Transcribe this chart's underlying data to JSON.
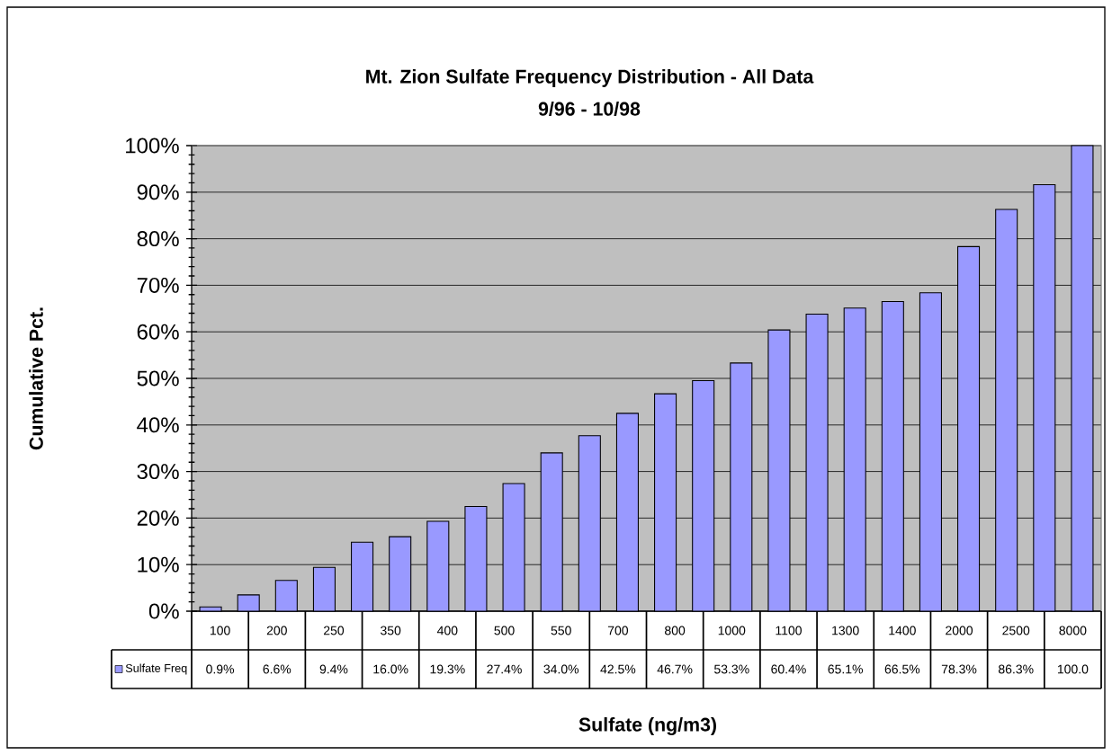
{
  "chart_data": {
    "type": "bar",
    "title": "Mt. Zion Sulfate Frequency Distribution - All Data",
    "subtitle": "9/96 - 10/98",
    "xlabel": "Sulfate (ng/m3)",
    "ylabel": "Cumulative Pct.",
    "categories": [
      "100",
      null,
      "200",
      "250",
      null,
      "350",
      "400",
      null,
      "500",
      "550",
      null,
      "700",
      "800",
      null,
      "1000",
      "1100",
      null,
      "1300",
      "1400",
      null,
      "2000",
      "2500",
      null,
      "8000"
    ],
    "series": [
      {
        "name": "Sulfate Freq",
        "color": "#9999ff",
        "values": [
          0.9,
          3.5,
          6.6,
          9.4,
          14.8,
          16.0,
          19.3,
          22.5,
          27.4,
          34.0,
          37.7,
          42.5,
          46.7,
          49.5,
          53.3,
          60.4,
          63.8,
          65.1,
          66.5,
          68.4,
          78.3,
          86.3,
          91.6,
          100.0
        ],
        "value_labels": [
          "0.9%",
          null,
          "6.6%",
          "9.4%",
          null,
          "16.0%",
          "19.3%",
          null,
          "27.4%",
          "34.0%",
          null,
          "42.5%",
          "46.7%",
          null,
          "53.3%",
          "60.4%",
          null,
          "65.1%",
          "66.5%",
          null,
          "78.3%",
          "86.3%",
          null,
          "100.0"
        ]
      }
    ],
    "ylim": [
      0,
      100
    ],
    "yticks": [
      {
        "value": 0,
        "label": "0%"
      },
      {
        "value": 10,
        "label": "10%"
      },
      {
        "value": 20,
        "label": "20%"
      },
      {
        "value": 30,
        "label": "30%"
      },
      {
        "value": 40,
        "label": "40%"
      },
      {
        "value": 50,
        "label": "50%"
      },
      {
        "value": 60,
        "label": "60%"
      },
      {
        "value": 70,
        "label": "70%"
      },
      {
        "value": 80,
        "label": "80%"
      },
      {
        "value": 90,
        "label": "90%"
      },
      {
        "value": 100,
        "label": "100%"
      },
      {
        "value": 2,
        "label": null
      },
      {
        "value": 4,
        "label": null
      },
      {
        "value": 6,
        "label": null
      },
      {
        "value": 8,
        "label": null
      },
      {
        "value": 12,
        "label": null
      },
      {
        "value": 14,
        "label": null
      },
      {
        "value": 16,
        "label": null
      },
      {
        "value": 18,
        "label": null
      },
      {
        "value": 22,
        "label": null
      },
      {
        "value": 24,
        "label": null
      },
      {
        "value": 26,
        "label": null
      },
      {
        "value": 28,
        "label": null
      },
      {
        "value": 32,
        "label": null
      },
      {
        "value": 34,
        "label": null
      },
      {
        "value": 36,
        "label": null
      },
      {
        "value": 38,
        "label": null
      },
      {
        "value": 42,
        "label": null
      },
      {
        "value": 44,
        "label": null
      },
      {
        "value": 46,
        "label": null
      },
      {
        "value": 48,
        "label": null
      },
      {
        "value": 52,
        "label": null
      },
      {
        "value": 54,
        "label": null
      },
      {
        "value": 56,
        "label": null
      },
      {
        "value": 58,
        "label": null
      },
      {
        "value": 62,
        "label": null
      },
      {
        "value": 64,
        "label": null
      },
      {
        "value": 66,
        "label": null
      },
      {
        "value": 68,
        "label": null
      },
      {
        "value": 72,
        "label": null
      },
      {
        "value": 74,
        "label": null
      },
      {
        "value": 76,
        "label": null
      },
      {
        "value": 78,
        "label": null
      },
      {
        "value": 82,
        "label": null
      },
      {
        "value": 84,
        "label": null
      },
      {
        "value": 86,
        "label": null
      },
      {
        "value": 88,
        "label": null
      },
      {
        "value": 92,
        "label": null
      },
      {
        "value": 94,
        "label": null
      },
      {
        "value": 96,
        "label": null
      },
      {
        "value": 98,
        "label": null
      }
    ],
    "grid": "y",
    "legend": "bottom"
  }
}
